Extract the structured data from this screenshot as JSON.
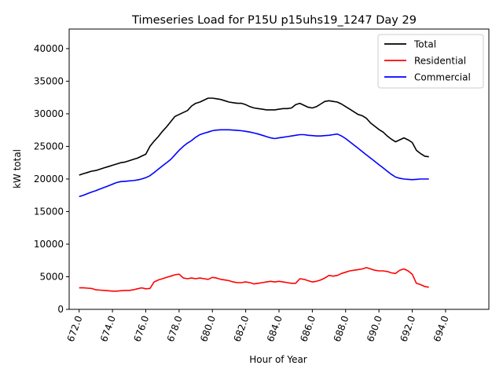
{
  "chart_data": {
    "type": "line",
    "title": "Timeseries Load for P15U p15uhs19_1247  Day 29",
    "xlabel": "Hour of Year",
    "ylabel": "kW total",
    "xlim": [
      671.4,
      696.6
    ],
    "ylim": [
      0,
      43000
    ],
    "xticks": [
      672,
      674,
      676,
      678,
      680,
      682,
      684,
      686,
      688,
      690,
      692,
      694
    ],
    "xtick_labels": [
      "672.0",
      "674.0",
      "676.0",
      "678.0",
      "680.0",
      "682.0",
      "684.0",
      "686.0",
      "688.0",
      "690.0",
      "692.0",
      "694.0"
    ],
    "yticks": [
      0,
      5000,
      10000,
      15000,
      20000,
      25000,
      30000,
      35000,
      40000
    ],
    "ytick_labels": [
      "0",
      "5000",
      "10000",
      "15000",
      "20000",
      "25000",
      "30000",
      "35000",
      "40000"
    ],
    "grid": false,
    "legend_position": "upper right",
    "x_start": 672.0,
    "x_step": 0.25,
    "series": [
      {
        "name": "Total",
        "color": "#000000",
        "values": [
          20600,
          20800,
          21000,
          21200,
          21300,
          21500,
          21700,
          21900,
          22100,
          22300,
          22500,
          22600,
          22800,
          23000,
          23200,
          23500,
          23800,
          25000,
          25800,
          26500,
          27300,
          28000,
          28800,
          29600,
          29900,
          30200,
          30500,
          31200,
          31600,
          31800,
          32100,
          32400,
          32400,
          32300,
          32200,
          32000,
          31800,
          31700,
          31600,
          31600,
          31400,
          31100,
          30900,
          30800,
          30700,
          30600,
          30600,
          30600,
          30700,
          30800,
          30800,
          30900,
          31400,
          31600,
          31300,
          31000,
          30900,
          31100,
          31500,
          31900,
          32000,
          31900,
          31800,
          31500,
          31100,
          30700,
          30300,
          29900,
          29700,
          29300,
          28600,
          28100,
          27600,
          27200,
          26600,
          26100,
          25700,
          26000,
          26300,
          26000,
          25600,
          24400,
          23900,
          23500,
          23400
        ]
      },
      {
        "name": "Residential",
        "color": "#ff0000",
        "values": [
          3300,
          3300,
          3250,
          3200,
          3000,
          2950,
          2900,
          2850,
          2800,
          2800,
          2850,
          2900,
          2900,
          3000,
          3150,
          3300,
          3150,
          3200,
          4200,
          4500,
          4700,
          4900,
          5100,
          5300,
          5400,
          4800,
          4700,
          4800,
          4700,
          4800,
          4700,
          4600,
          4900,
          4800,
          4600,
          4500,
          4400,
          4200,
          4100,
          4100,
          4200,
          4100,
          3900,
          4000,
          4100,
          4200,
          4300,
          4200,
          4300,
          4200,
          4100,
          4000,
          4000,
          4700,
          4600,
          4400,
          4200,
          4300,
          4500,
          4800,
          5200,
          5100,
          5200,
          5500,
          5700,
          5900,
          6000,
          6100,
          6200,
          6400,
          6200,
          6000,
          5900,
          5900,
          5800,
          5600,
          5500,
          6000,
          6200,
          5900,
          5400,
          4000,
          3800,
          3500,
          3400
        ]
      },
      {
        "name": "Commercial",
        "color": "#0000ff",
        "values": [
          17300,
          17500,
          17750,
          18000,
          18200,
          18450,
          18700,
          18950,
          19200,
          19450,
          19600,
          19650,
          19700,
          19750,
          19850,
          20000,
          20200,
          20500,
          21000,
          21500,
          22000,
          22500,
          23000,
          23700,
          24400,
          25000,
          25500,
          25900,
          26400,
          26800,
          27000,
          27200,
          27400,
          27500,
          27550,
          27550,
          27550,
          27500,
          27450,
          27400,
          27300,
          27200,
          27050,
          26900,
          26700,
          26500,
          26300,
          26200,
          26300,
          26400,
          26500,
          26600,
          26700,
          26800,
          26800,
          26700,
          26650,
          26600,
          26600,
          26650,
          26700,
          26800,
          26900,
          26600,
          26200,
          25700,
          25200,
          24700,
          24200,
          23700,
          23200,
          22700,
          22200,
          21700,
          21200,
          20700,
          20300,
          20100,
          20000,
          19950,
          19900,
          19950,
          20000,
          20000,
          20000
        ]
      }
    ]
  }
}
